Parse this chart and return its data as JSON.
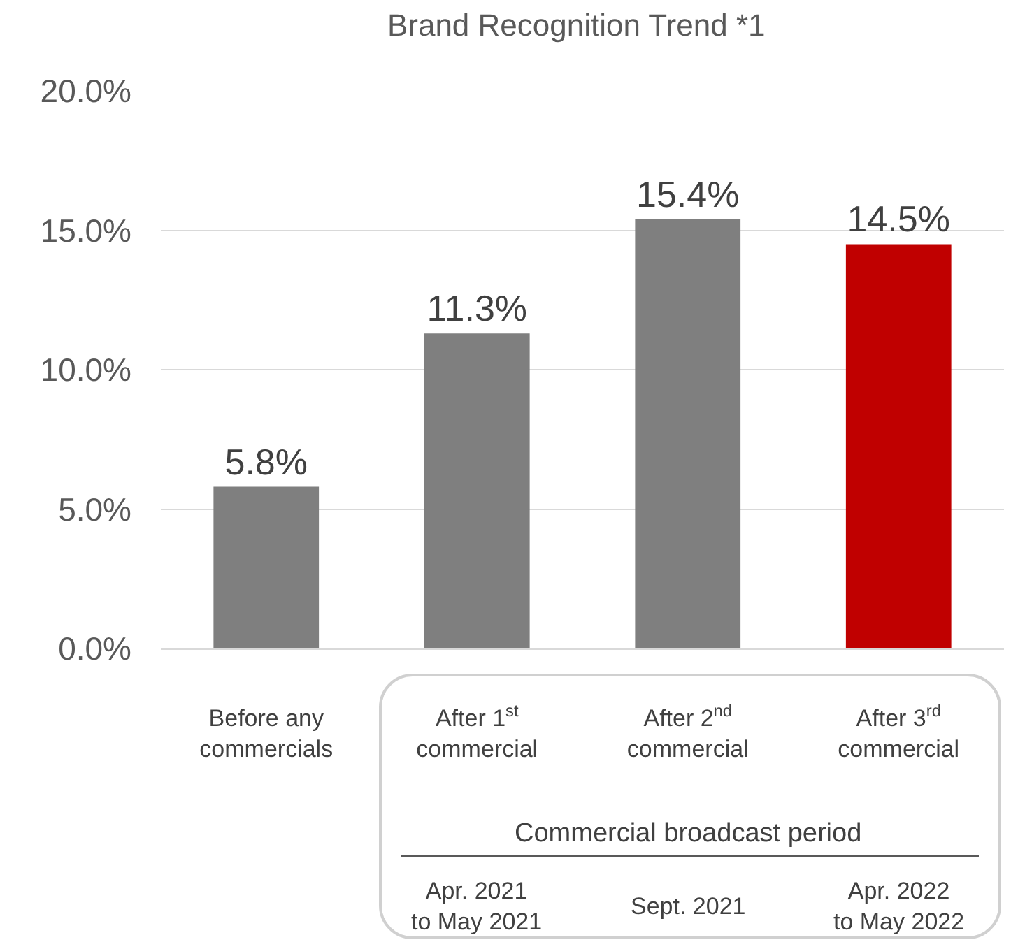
{
  "chart_data": {
    "type": "bar",
    "title": "Brand Recognition Trend *1",
    "categories": [
      "Before any\ncommercials",
      "After 1$^{st}$\ncommercial",
      "After 2$^{nd}$\ncommercial",
      "After 3$^{rd}$\ncommercial"
    ],
    "values": [
      5.8,
      11.3,
      15.4,
      14.5
    ],
    "colors": [
      "#7f7f7f",
      "#7f7f7f",
      "#7f7f7f",
      "#c00000"
    ],
    "value_labels": [
      "5.8%",
      "11.3%",
      "15.4%",
      "14.5%"
    ],
    "ylim": [
      0,
      20
    ],
    "yticks": [
      {
        "value": 0,
        "label": "0.0%"
      },
      {
        "value": 5,
        "label": "5.0%"
      },
      {
        "value": 10,
        "label": "10.0%"
      },
      {
        "value": 15,
        "label": "15.0%"
      },
      {
        "value": 20,
        "label": "20.0%"
      }
    ],
    "grid": "y",
    "annotations": [
      "Commercial broadcast period",
      "Apr. 2021\nto May 2021",
      "Sept. 2021",
      "Apr. 2022\nto May 2022"
    ]
  }
}
